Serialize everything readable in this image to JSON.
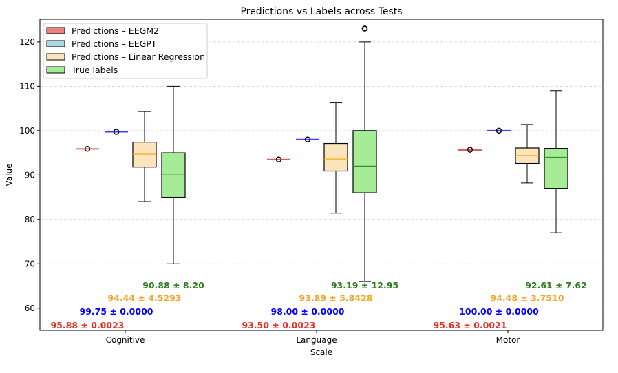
{
  "chart_data": {
    "type": "box",
    "title": "Predictions vs Labels across Tests",
    "xlabel": "Scale",
    "ylabel": "Value",
    "ylim": [
      55,
      125.1
    ],
    "yticks": [
      60,
      70,
      80,
      90,
      100,
      110,
      120
    ],
    "grid": "y dashed",
    "legend_position": "top-left",
    "categories": [
      "Cognitive",
      "Language",
      "Motor"
    ],
    "series": [
      {
        "name": "Predictions – EEGM2",
        "fill": "#f08080",
        "median_color": "#d62728",
        "annotation_color": "#e8302a",
        "boxes": [
          {
            "whislo": 95.88,
            "q1": 95.88,
            "med": 95.88,
            "q3": 95.88,
            "whishi": 95.88,
            "fliers": [
              95.9
            ]
          },
          {
            "whislo": 93.5,
            "q1": 93.5,
            "med": 93.5,
            "q3": 93.5,
            "whishi": 93.5,
            "fliers": [
              93.5
            ]
          },
          {
            "whislo": 95.63,
            "q1": 95.63,
            "med": 95.63,
            "q3": 95.63,
            "whishi": 95.63,
            "fliers": [
              95.7
            ]
          }
        ],
        "annotations": [
          "95.88 ± 0.0023",
          "93.50 ± 0.0023",
          "95.63 ± 0.0021"
        ]
      },
      {
        "name": "Predictions – EEGPT",
        "fill": "#add8e6",
        "median_color": "#0000ff",
        "annotation_color": "#0000ff",
        "boxes": [
          {
            "whislo": 99.75,
            "q1": 99.75,
            "med": 99.75,
            "q3": 99.75,
            "whishi": 99.75,
            "fliers": [
              99.75
            ]
          },
          {
            "whislo": 98.0,
            "q1": 98.0,
            "med": 98.0,
            "q3": 98.0,
            "whishi": 98.0,
            "fliers": [
              98.0
            ]
          },
          {
            "whislo": 100.0,
            "q1": 100.0,
            "med": 100.0,
            "q3": 100.0,
            "whishi": 100.0,
            "fliers": [
              100.0
            ]
          }
        ],
        "annotations": [
          "99.75 ± 0.0000",
          "98.00 ± 0.0000",
          "100.00 ± 0.0000"
        ]
      },
      {
        "name": "Predictions – Linear Regression",
        "fill": "#fce4bc",
        "median_color": "#f5a623",
        "annotation_color": "#f0a830",
        "boxes": [
          {
            "whislo": 84.0,
            "q1": 91.8,
            "med": 94.7,
            "q3": 97.4,
            "whishi": 104.3,
            "fliers": []
          },
          {
            "whislo": 81.4,
            "q1": 90.9,
            "med": 93.6,
            "q3": 97.1,
            "whishi": 106.4,
            "fliers": []
          },
          {
            "whislo": 88.2,
            "q1": 92.6,
            "med": 94.4,
            "q3": 96.1,
            "whishi": 101.4,
            "fliers": []
          }
        ],
        "annotations": [
          "94.44 ± 4.5293",
          "93.89 ± 5.8428",
          "94.48 ± 3.7510"
        ]
      },
      {
        "name": "True labels",
        "fill": "#a6eb96",
        "median_color": "#3c8a30",
        "annotation_color": "#2e7d1e",
        "boxes": [
          {
            "whislo": 70,
            "q1": 85,
            "med": 90,
            "q3": 95,
            "whishi": 110,
            "fliers": []
          },
          {
            "whislo": 66,
            "q1": 86,
            "med": 92,
            "q3": 100,
            "whishi": 120,
            "fliers": [
              123,
              123
            ]
          },
          {
            "whislo": 77,
            "q1": 87,
            "med": 94,
            "q3": 96,
            "whishi": 109,
            "fliers": []
          }
        ],
        "annotations": [
          "90.88 ± 8.20",
          "93.19 ± 12.95",
          "92.61 ± 7.62"
        ]
      }
    ]
  }
}
